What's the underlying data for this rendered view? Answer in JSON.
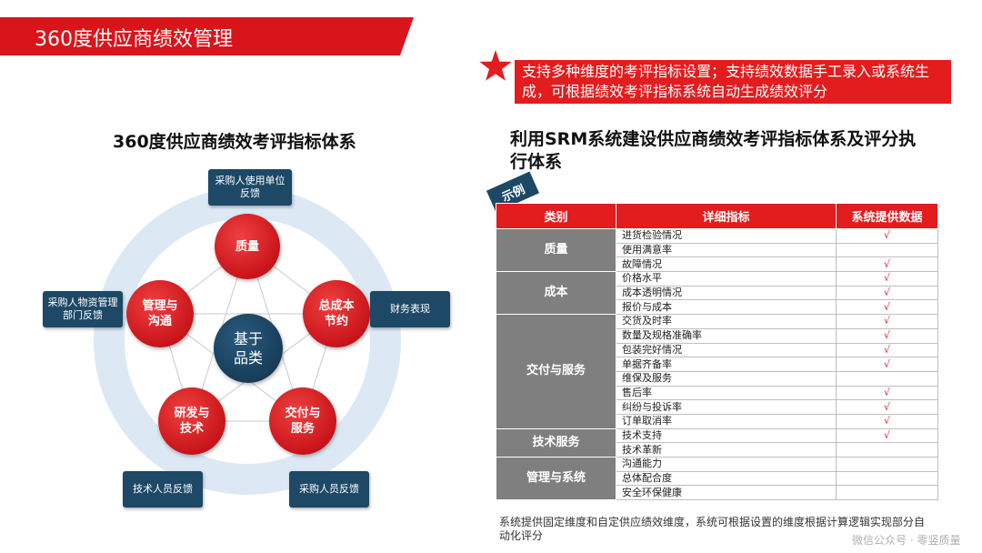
{
  "title": "360度供应商绩效管理",
  "callout": "支持多种维度的考评指标设置；支持绩效数据手工录入或系统生成，可根据绩效考评指标系统自动生成绩效评分",
  "left_heading": "360度供应商绩效考评指标体系",
  "right_heading": "利用SRM系统建设供应商绩效考评指标体系及评分执行体系",
  "diagram": {
    "center": "基于\n品类",
    "nodes": {
      "quality": "质量",
      "cost": "总成本\n节约",
      "delivery": "交付与\n服务",
      "rnd": "研发与\n技术",
      "management": "管理与\n沟通"
    },
    "feedback": {
      "top": "采购人使用单位\n反馈",
      "right": "财务表现",
      "left": "采购人物资管理\n部门反馈",
      "bottom_left": "技术人员反馈",
      "bottom_right": "采购人员反馈"
    }
  },
  "example_tag": "示例",
  "table": {
    "headers": [
      "类别",
      "详细指标",
      "系统提供数据"
    ],
    "check": "√",
    "groups": [
      {
        "category": "质量",
        "rows": [
          {
            "item": "进货检验情况",
            "check": true
          },
          {
            "item": "使用满意率",
            "check": false
          },
          {
            "item": "故障情况",
            "check": true
          }
        ]
      },
      {
        "category": "成本",
        "rows": [
          {
            "item": "价格水平",
            "check": true
          },
          {
            "item": "成本透明情况",
            "check": true
          },
          {
            "item": "报价与成本",
            "check": true
          }
        ]
      },
      {
        "category": "交付与服务",
        "rows": [
          {
            "item": "交货及时率",
            "check": true
          },
          {
            "item": "数量及规格准确率",
            "check": true
          },
          {
            "item": "包装完好情况",
            "check": true
          },
          {
            "item": "单据齐备率",
            "check": true
          },
          {
            "item": "维保及服务",
            "check": false
          },
          {
            "item": "售后率",
            "check": true
          },
          {
            "item": "纠纷与投诉率",
            "check": true
          },
          {
            "item": "订单取消率",
            "check": true
          }
        ]
      },
      {
        "category": "技术服务",
        "rows": [
          {
            "item": "技术支持",
            "check": true
          },
          {
            "item": "技术革新",
            "check": false
          }
        ]
      },
      {
        "category": "管理与系统",
        "rows": [
          {
            "item": "沟通能力",
            "check": false
          },
          {
            "item": "总体配合度",
            "check": false
          },
          {
            "item": "安全环保健康",
            "check": false
          }
        ]
      }
    ]
  },
  "footnote": "系统提供固定维度和自定供应绩效维度，系统可根据设置的维度根据计算逻辑实现部分自动化评分",
  "watermark": "微信公众号 · 零竖质量",
  "colors": {
    "brand_red": "#e31c1e",
    "navy": "#1d4866",
    "category_gray": "#7f7f7f",
    "ring_blue": "#dce9f5"
  }
}
